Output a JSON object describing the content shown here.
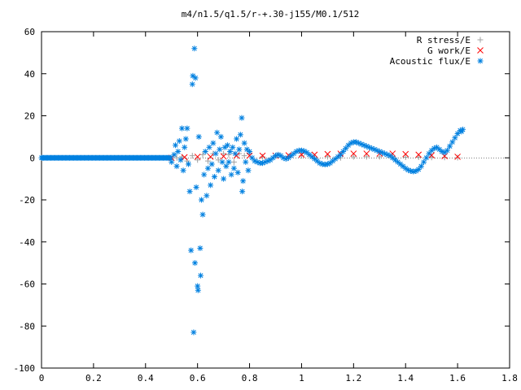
{
  "chart_data": {
    "type": "scatter",
    "title": "m4/n1.5/q1.5/r-+.30-j155/M0.1/512",
    "xlabel": "",
    "ylabel": "",
    "xlim": [
      0,
      1.8
    ],
    "ylim": [
      -100,
      60
    ],
    "xticks": [
      "0",
      "0.2",
      "0.4",
      "0.6",
      "0.8",
      "1",
      "1.2",
      "1.4",
      "1.6",
      "1.8"
    ],
    "yticks": [
      "60",
      "40",
      "20",
      "0",
      "-20",
      "-40",
      "-60",
      "-80",
      "-100"
    ],
    "grid": false,
    "legend_position": "top-right",
    "series": [
      {
        "name": "R stress/E",
        "marker": "plus",
        "color": "#a0a0a0",
        "points": [
          [
            0.52,
            0.0
          ],
          [
            0.54,
            0.5
          ],
          [
            0.56,
            -1.5
          ],
          [
            0.58,
            1.0
          ],
          [
            0.6,
            -1.0
          ],
          [
            0.62,
            1.5
          ],
          [
            0.64,
            -1.5
          ],
          [
            0.66,
            2.0
          ],
          [
            0.68,
            -1.0
          ],
          [
            0.7,
            2.0
          ],
          [
            0.72,
            1.5
          ],
          [
            0.74,
            -2.0
          ],
          [
            0.76,
            2.0
          ],
          [
            0.78,
            1.0
          ],
          [
            0.8,
            2.0
          ],
          [
            0.85,
            0.5
          ],
          [
            0.9,
            1.0
          ],
          [
            0.95,
            0.5
          ],
          [
            1.0,
            1.0
          ],
          [
            1.05,
            0.0
          ],
          [
            1.1,
            0.5
          ],
          [
            1.15,
            0.0
          ],
          [
            1.2,
            0.5
          ],
          [
            1.25,
            0.5
          ],
          [
            1.3,
            0.5
          ],
          [
            1.35,
            0.5
          ],
          [
            1.4,
            0.3
          ],
          [
            1.45,
            0.3
          ],
          [
            1.5,
            0.2
          ],
          [
            1.55,
            0.2
          ],
          [
            1.6,
            0.1
          ]
        ]
      },
      {
        "name": "G work/E",
        "marker": "cross",
        "color": "#ff0000",
        "points": [
          [
            0.5,
            0.0
          ],
          [
            0.55,
            0.3
          ],
          [
            0.6,
            0.5
          ],
          [
            0.65,
            0.5
          ],
          [
            0.7,
            0.7
          ],
          [
            0.75,
            1.0
          ],
          [
            0.8,
            1.0
          ],
          [
            0.85,
            1.0
          ],
          [
            0.9,
            1.0
          ],
          [
            0.95,
            1.2
          ],
          [
            1.0,
            1.5
          ],
          [
            1.05,
            1.5
          ],
          [
            1.1,
            1.8
          ],
          [
            1.15,
            2.0
          ],
          [
            1.2,
            2.0
          ],
          [
            1.25,
            2.0
          ],
          [
            1.3,
            2.0
          ],
          [
            1.35,
            2.0
          ],
          [
            1.4,
            1.8
          ],
          [
            1.45,
            1.5
          ],
          [
            1.5,
            1.2
          ],
          [
            1.55,
            0.8
          ],
          [
            1.6,
            0.5
          ]
        ]
      },
      {
        "name": "Acoustic flux/E",
        "marker": "star",
        "color": "#0080e0",
        "points": [
          [
            0.5,
            -2.0
          ],
          [
            0.51,
            1.5
          ],
          [
            0.515,
            6.0
          ],
          [
            0.52,
            -4.0
          ],
          [
            0.525,
            3.0
          ],
          [
            0.53,
            8.0
          ],
          [
            0.535,
            -1.0
          ],
          [
            0.54,
            14.0
          ],
          [
            0.545,
            -6.0
          ],
          [
            0.55,
            5.0
          ],
          [
            0.555,
            9.0
          ],
          [
            0.56,
            14.0
          ],
          [
            0.565,
            -3.0
          ],
          [
            0.57,
            -16.0
          ],
          [
            0.575,
            -44.0
          ],
          [
            0.58,
            35.0
          ],
          [
            0.582,
            39.0
          ],
          [
            0.585,
            -83.0
          ],
          [
            0.588,
            52.0
          ],
          [
            0.59,
            -50.0
          ],
          [
            0.592,
            38.0
          ],
          [
            0.595,
            -14.0
          ],
          [
            0.6,
            -61.0
          ],
          [
            0.602,
            -63.0
          ],
          [
            0.605,
            10.0
          ],
          [
            0.61,
            -43.0
          ],
          [
            0.612,
            -56.0
          ],
          [
            0.615,
            -20.0
          ],
          [
            0.62,
            -27.0
          ],
          [
            0.625,
            -8.0
          ],
          [
            0.63,
            3.0
          ],
          [
            0.635,
            -18.0
          ],
          [
            0.64,
            -5.0
          ],
          [
            0.645,
            5.0
          ],
          [
            0.65,
            -13.0
          ],
          [
            0.655,
            -3.0
          ],
          [
            0.66,
            7.0
          ],
          [
            0.665,
            -9.0
          ],
          [
            0.67,
            2.0
          ],
          [
            0.675,
            12.0
          ],
          [
            0.68,
            -6.0
          ],
          [
            0.685,
            4.0
          ],
          [
            0.69,
            10.0
          ],
          [
            0.695,
            -2.0
          ],
          [
            0.7,
            -10.0
          ],
          [
            0.705,
            5.0
          ],
          [
            0.71,
            -4.0
          ],
          [
            0.715,
            6.0
          ],
          [
            0.72,
            -2.0
          ],
          [
            0.725,
            3.0
          ],
          [
            0.73,
            -8.0
          ],
          [
            0.735,
            5.0
          ],
          [
            0.74,
            -5.0
          ],
          [
            0.745,
            2.0
          ],
          [
            0.75,
            9.0
          ],
          [
            0.755,
            -7.0
          ],
          [
            0.76,
            4.0
          ],
          [
            0.765,
            11.0
          ],
          [
            0.77,
            19.0
          ],
          [
            0.772,
            -16.0
          ],
          [
            0.775,
            -11.0
          ],
          [
            0.78,
            7.0
          ],
          [
            0.785,
            -2.0
          ],
          [
            0.79,
            4.0
          ],
          [
            0.795,
            -6.0
          ],
          [
            0.8,
            3.0
          ],
          [
            0.81,
            0.0
          ],
          [
            0.82,
            -1.5
          ],
          [
            0.83,
            -2.0
          ],
          [
            0.84,
            -2.5
          ],
          [
            0.85,
            -2.5
          ],
          [
            0.86,
            -2.0
          ],
          [
            0.87,
            -1.5
          ],
          [
            0.88,
            -1.0
          ],
          [
            0.89,
            0.0
          ],
          [
            0.9,
            1.0
          ],
          [
            0.91,
            1.5
          ],
          [
            0.92,
            1.0
          ],
          [
            0.93,
            0.0
          ],
          [
            0.94,
            -0.5
          ],
          [
            0.95,
            0.0
          ],
          [
            0.96,
            1.0
          ],
          [
            0.97,
            2.0
          ],
          [
            0.98,
            3.0
          ],
          [
            0.99,
            3.5
          ],
          [
            1.0,
            3.5
          ],
          [
            1.01,
            3.2
          ],
          [
            1.02,
            2.5
          ],
          [
            1.03,
            1.5
          ],
          [
            1.04,
            0.5
          ],
          [
            1.05,
            -0.5
          ],
          [
            1.06,
            -1.5
          ],
          [
            1.07,
            -2.5
          ],
          [
            1.08,
            -3.0
          ],
          [
            1.09,
            -3.2
          ],
          [
            1.1,
            -3.0
          ],
          [
            1.11,
            -2.5
          ],
          [
            1.12,
            -1.5
          ],
          [
            1.13,
            -0.5
          ],
          [
            1.14,
            0.5
          ],
          [
            1.15,
            1.5
          ],
          [
            1.16,
            3.0
          ],
          [
            1.17,
            4.5
          ],
          [
            1.18,
            6.0
          ],
          [
            1.19,
            7.0
          ],
          [
            1.2,
            7.5
          ],
          [
            1.21,
            7.5
          ],
          [
            1.22,
            7.0
          ],
          [
            1.23,
            6.5
          ],
          [
            1.24,
            6.0
          ],
          [
            1.25,
            5.5
          ],
          [
            1.26,
            5.0
          ],
          [
            1.27,
            4.5
          ],
          [
            1.28,
            4.0
          ],
          [
            1.29,
            3.5
          ],
          [
            1.3,
            3.0
          ],
          [
            1.31,
            2.5
          ],
          [
            1.32,
            2.0
          ],
          [
            1.33,
            1.5
          ],
          [
            1.34,
            1.0
          ],
          [
            1.35,
            0.0
          ],
          [
            1.36,
            -1.0
          ],
          [
            1.37,
            -2.0
          ],
          [
            1.38,
            -3.0
          ],
          [
            1.39,
            -4.0
          ],
          [
            1.4,
            -5.0
          ],
          [
            1.41,
            -5.8
          ],
          [
            1.42,
            -6.3
          ],
          [
            1.43,
            -6.5
          ],
          [
            1.44,
            -6.3
          ],
          [
            1.45,
            -5.5
          ],
          [
            1.46,
            -4.0
          ],
          [
            1.47,
            -2.0
          ],
          [
            1.48,
            0.0
          ],
          [
            1.49,
            2.0
          ],
          [
            1.5,
            3.5
          ],
          [
            1.51,
            4.5
          ],
          [
            1.52,
            5.0
          ],
          [
            1.53,
            4.0
          ],
          [
            1.54,
            3.0
          ],
          [
            1.55,
            2.5
          ],
          [
            1.56,
            3.5
          ],
          [
            1.57,
            5.5
          ],
          [
            1.58,
            7.5
          ],
          [
            1.59,
            9.5
          ],
          [
            1.6,
            11.5
          ],
          [
            1.61,
            13.0
          ],
          [
            1.615,
            12.5
          ],
          [
            1.62,
            13.5
          ]
        ]
      }
    ]
  }
}
